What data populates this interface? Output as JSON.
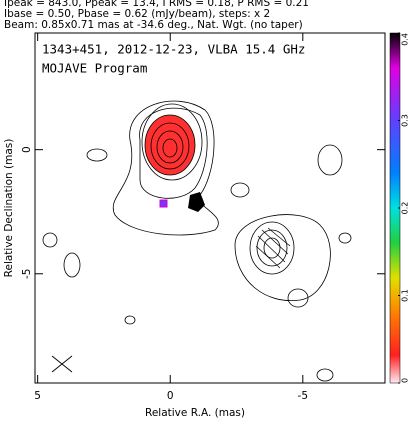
{
  "chart_data": {
    "type": "contour",
    "header": [
      "Ipeak = 843.0, Ppeak = 13.4, I RMS = 0.18, P RMS = 0.21",
      "Ibase = 0.50, Pbase = 0.62 (mJy/beam), steps: x 2",
      "Beam: 0.85x0.71 mas at -34.6 deg., Nat. Wgt. (no taper)"
    ],
    "title": "1343+451, 2012-12-23, VLBA 15.4 GHz",
    "subtitle": "MOJAVE Program",
    "x_label": "Relative R.A. (mas)",
    "y_label": "Relative Declination (mas)",
    "xlim": [
      5.1,
      -8.1
    ],
    "xticks": [
      5,
      0,
      -5
    ],
    "ylim": [
      -9.4,
      4.7
    ],
    "yticks": [
      0,
      -5
    ],
    "clim": [
      0,
      0.4
    ],
    "cticks": [
      0,
      0.1,
      0.2,
      0.3,
      0.4
    ]
  }
}
